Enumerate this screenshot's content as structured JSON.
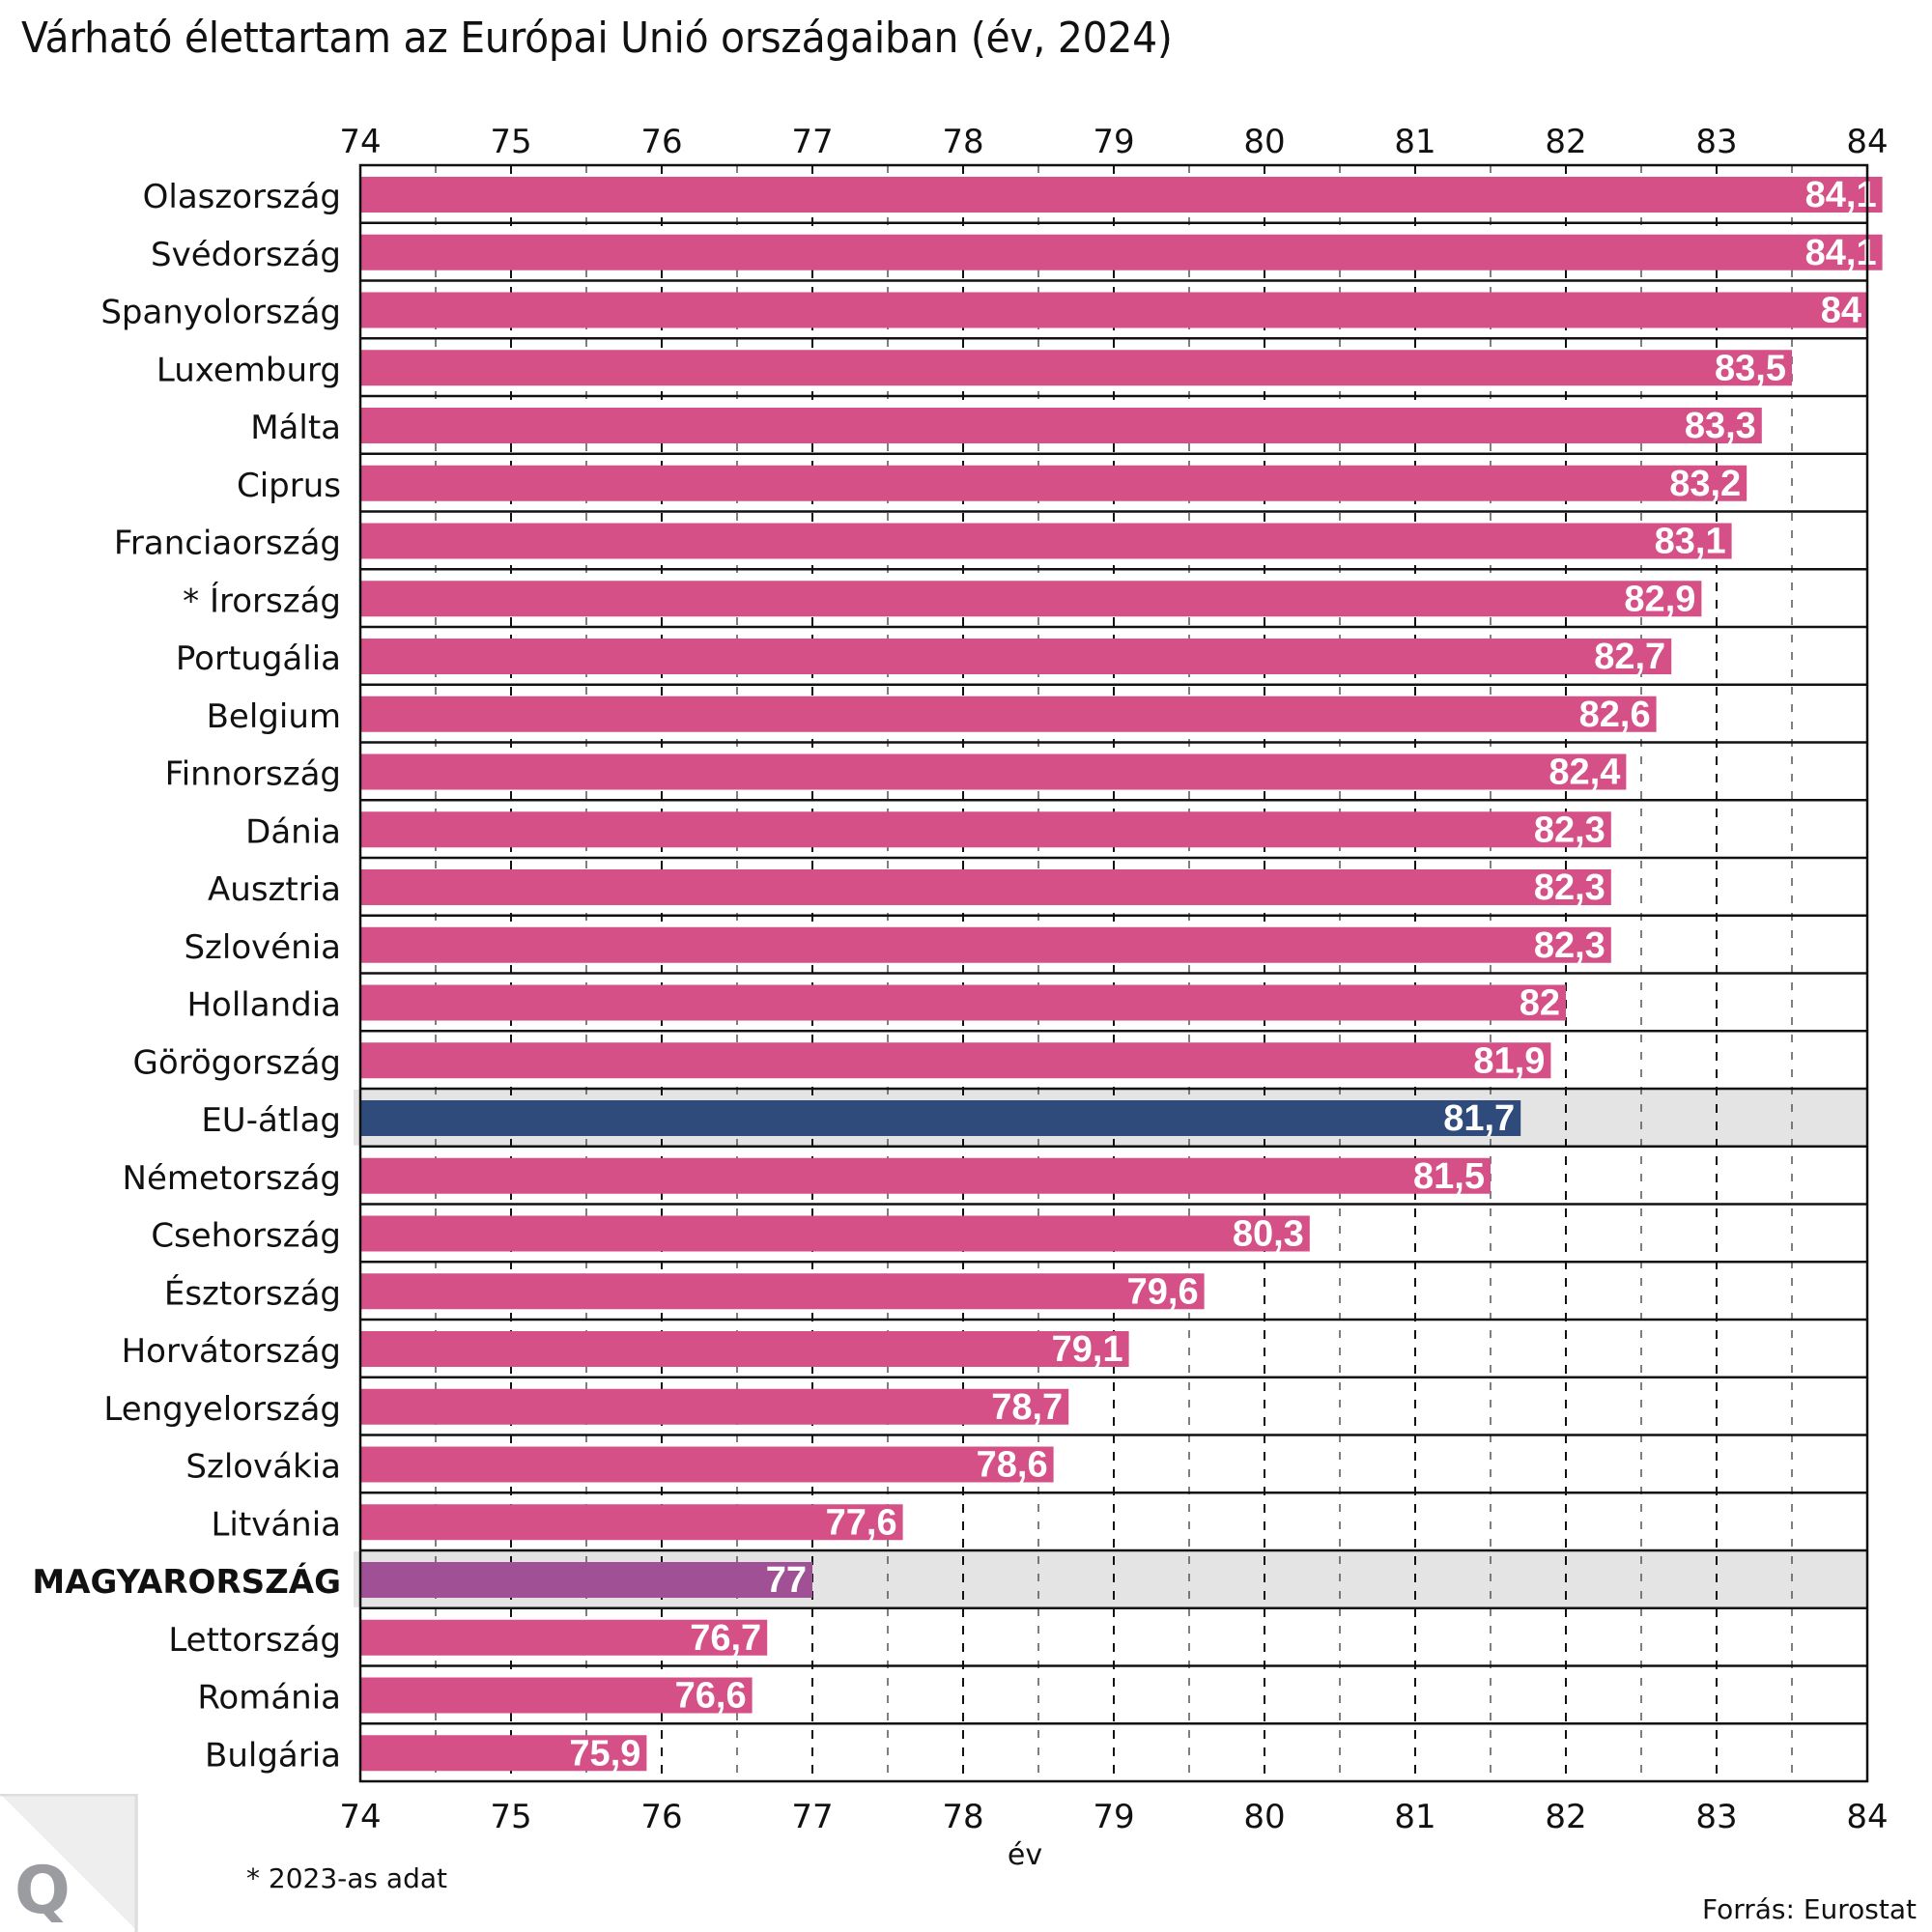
{
  "title": "Várható élettartam az Európai Unió országaiban (év, 2024)",
  "footnote": "* 2023-as adat",
  "source": "Forrás: Eurostat",
  "logo_letter": "Q",
  "colors": {
    "bar_default": "#d45087",
    "bar_eu_average": "#2f4b7c",
    "bar_hungary": "#a05195",
    "highlight_band": "#e4e4e4",
    "label_text": "#ffffff",
    "logo_background": "#eeeeef",
    "logo_letter": "#9b9ca0"
  },
  "chart_data": {
    "type": "bar",
    "orientation": "horizontal",
    "title": "Várható élettartam az Európai Unió országaiban (év, 2024)",
    "xlabel": "év",
    "ylabel": "",
    "xlim": [
      74,
      84
    ],
    "x_ticks": [
      "74",
      "75",
      "76",
      "77",
      "78",
      "79",
      "80",
      "81",
      "82",
      "83",
      "84"
    ],
    "x_ticks_position": "top-and-bottom",
    "grid": "dashed vertical at every 0.5 year",
    "decimal_separator": ",",
    "categories": [
      "Olaszország",
      "Svédország",
      "Spanyolország",
      "Luxemburg",
      "Málta",
      "Ciprus",
      "Franciaország",
      "* Írország",
      "Portugália",
      "Belgium",
      "Finnország",
      "Dánia",
      "Ausztria",
      "Szlovénia",
      "Hollandia",
      "Görögország",
      "EU-átlag",
      "Németország",
      "Csehország",
      "Észtország",
      "Horvátország",
      "Lengyelország",
      "Szlovákia",
      "Litvánia",
      "MAGYARORSZÁG",
      "Lettország",
      "Románia",
      "Bulgária"
    ],
    "values": [
      84.1,
      84.1,
      84.0,
      83.5,
      83.3,
      83.2,
      83.1,
      82.9,
      82.7,
      82.6,
      82.4,
      82.3,
      82.3,
      82.3,
      82.0,
      81.9,
      81.7,
      81.5,
      80.3,
      79.6,
      79.1,
      78.7,
      78.6,
      77.6,
      77.0,
      76.7,
      76.6,
      75.9
    ],
    "value_labels": [
      "84,1",
      "84,1",
      "84",
      "83,5",
      "83,3",
      "83,2",
      "83,1",
      "82,9",
      "82,7",
      "82,6",
      "82,4",
      "82,3",
      "82,3",
      "82,3",
      "82",
      "81,9",
      "81,7",
      "81,5",
      "80,3",
      "79,6",
      "79,1",
      "78,7",
      "78,6",
      "77,6",
      "77",
      "76,7",
      "76,6",
      "75,9"
    ],
    "highlighted": {
      "EU-átlag": "eu_average",
      "MAGYARORSZÁG": "hungary"
    },
    "bold_categories": [
      "MAGYARORSZÁG"
    ]
  }
}
